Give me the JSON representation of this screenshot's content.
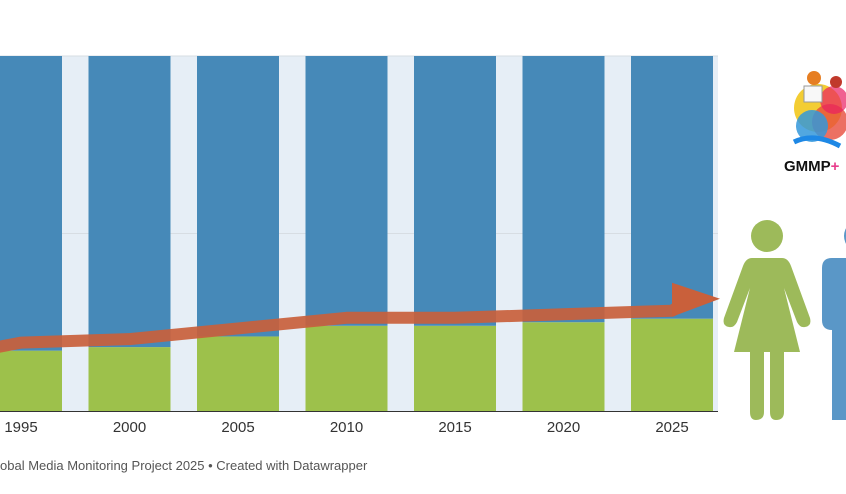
{
  "chart_data": {
    "type": "bar",
    "stacked": true,
    "categories": [
      "1995",
      "2000",
      "2005",
      "2010",
      "2015",
      "2020",
      "2025"
    ],
    "series": [
      {
        "values": [
          17,
          18,
          21,
          24,
          24,
          25,
          26
        ],
        "color": "#9dc14b"
      },
      {
        "values": [
          83,
          82,
          79,
          76,
          76,
          75,
          74
        ],
        "color": "#4689b8"
      }
    ],
    "ylim": [
      0,
      100
    ],
    "grid": true,
    "trend_arrow": {
      "color": "#c9603b",
      "direction": "rising"
    },
    "background_stripes": "#e6eef6",
    "xlabel": "",
    "ylabel": ""
  },
  "footer": "obal Media Monitoring Project 2025 • Created with Datawrapper",
  "logo": {
    "text": "GMMP",
    "plus": "+"
  },
  "icons": {
    "woman": "woman-icon",
    "man": "man-icon",
    "woman_color": "#9dba5a",
    "man_color": "#5a97c7"
  }
}
